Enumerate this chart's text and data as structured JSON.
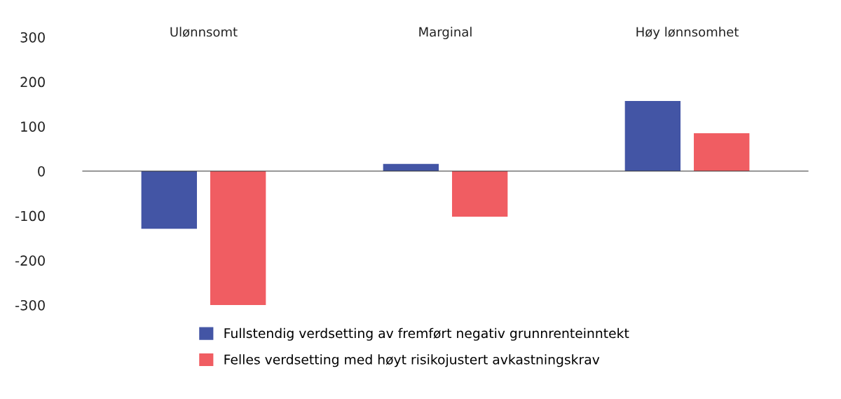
{
  "chart_data": {
    "type": "bar",
    "categories": [
      "Ulønnsomt",
      "Marginal",
      "Høy lønnsomhet"
    ],
    "series": [
      {
        "name": "Fullstendig verdsetting av fremført negativ grunnrenteinntekt",
        "color": "#4355a5",
        "values": [
          -129,
          16,
          157
        ]
      },
      {
        "name": "Felles verdsetting med høyt risikojustert avkastningskrav",
        "color": "#f05d62",
        "values": [
          -300,
          -102,
          85
        ]
      }
    ],
    "ylim": [
      -300,
      300
    ],
    "yticks": [
      -300,
      -200,
      -100,
      0,
      100,
      200,
      300
    ],
    "legend": "bottom"
  }
}
